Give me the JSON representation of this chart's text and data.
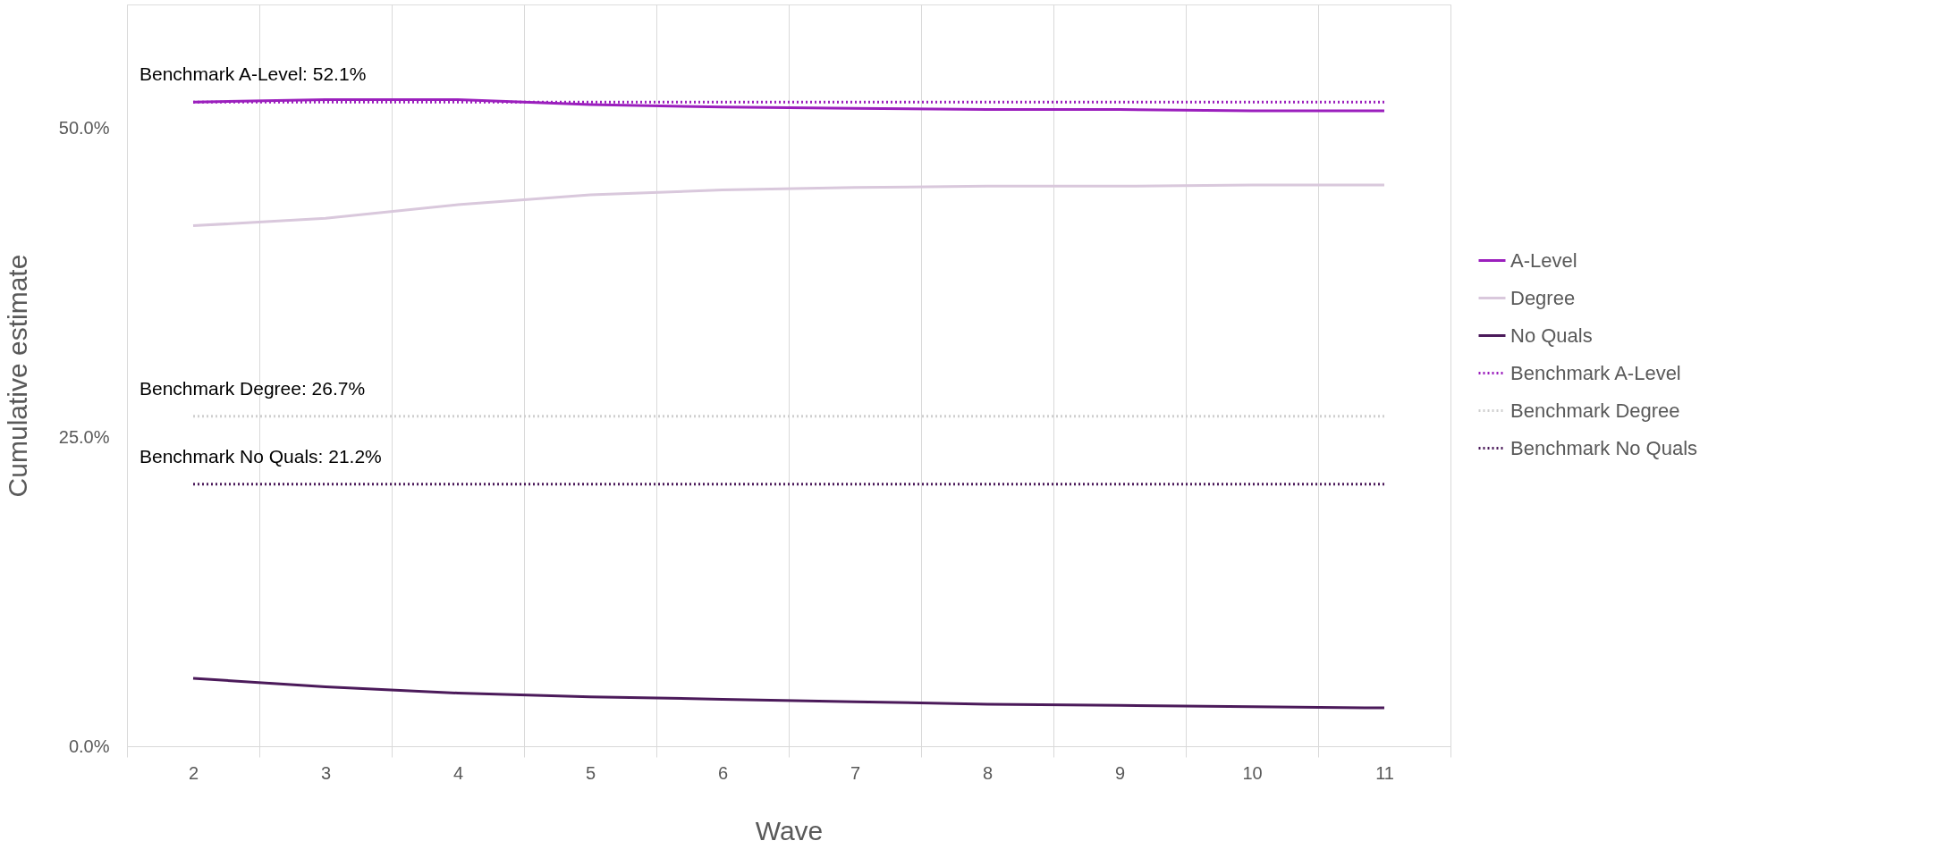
{
  "chart_data": {
    "type": "line",
    "xlabel": "Wave",
    "ylabel": "Cumulative estimate",
    "categories": [
      "2",
      "3",
      "4",
      "5",
      "6",
      "7",
      "8",
      "9",
      "10",
      "11"
    ],
    "series": [
      {
        "name": "A-Level",
        "color": "#9b1fbd",
        "values": [
          52.1,
          52.3,
          52.3,
          51.9,
          51.7,
          51.6,
          51.5,
          51.5,
          51.4,
          51.4
        ]
      },
      {
        "name": "Degree",
        "color": "#d9c8dc",
        "values": [
          42.1,
          42.7,
          43.8,
          44.6,
          45.0,
          45.2,
          45.3,
          45.3,
          45.4,
          45.4
        ]
      },
      {
        "name": "No Quals",
        "color": "#4b1a5a",
        "values": [
          5.5,
          4.8,
          4.3,
          4.0,
          3.8,
          3.6,
          3.4,
          3.3,
          3.2,
          3.1
        ]
      },
      {
        "name": "Benchmark A-Level",
        "color": "#9b1fbd",
        "line_style": "dotted",
        "values": [
          52.1,
          52.1,
          52.1,
          52.1,
          52.1,
          52.1,
          52.1,
          52.1,
          52.1,
          52.1
        ]
      },
      {
        "name": "Benchmark Degree",
        "color": "#cfcfcf",
        "line_style": "dotted",
        "values": [
          26.7,
          26.7,
          26.7,
          26.7,
          26.7,
          26.7,
          26.7,
          26.7,
          26.7,
          26.7
        ]
      },
      {
        "name": "Benchmark No Quals",
        "color": "#4b1a5a",
        "line_style": "dotted",
        "values": [
          21.2,
          21.2,
          21.2,
          21.2,
          21.2,
          21.2,
          21.2,
          21.2,
          21.2,
          21.2
        ]
      }
    ],
    "annotations": [
      {
        "text": "Benchmark A-Level: 52.1%",
        "x": "2",
        "y": 52.1
      },
      {
        "text": "Benchmark Degree: 26.7%",
        "x": "2",
        "y": 26.7
      },
      {
        "text": "Benchmark No Quals: 21.2%",
        "x": "2",
        "y": 21.2
      }
    ],
    "ylim": [
      0,
      60
    ],
    "yticks": [
      {
        "value": 0,
        "label": "0.0%"
      },
      {
        "value": 25,
        "label": "25.0%"
      },
      {
        "value": 50,
        "label": "50.0%"
      }
    ],
    "grid": "x",
    "legend": "right",
    "line_style": "solid",
    "marker": "none"
  }
}
